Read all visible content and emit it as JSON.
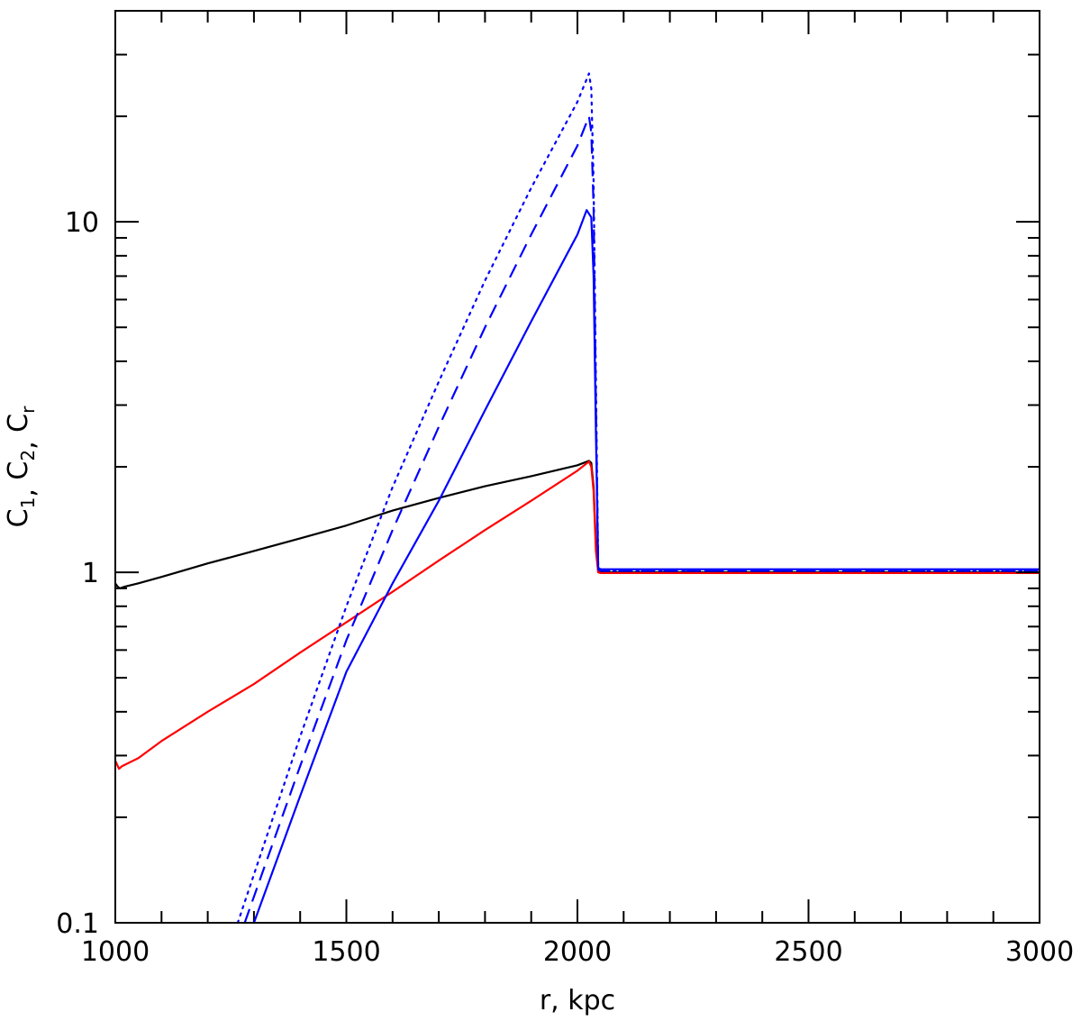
{
  "chart_data": {
    "type": "line",
    "xlabel": "r, kpc",
    "ylabel": {
      "prefix": "C",
      "parts": [
        {
          "sub": "1",
          "sep": ", "
        },
        {
          "sub": "2",
          "sep": ", "
        },
        {
          "sub": "r",
          "sep": ""
        }
      ]
    },
    "xlim": [
      1000,
      3000
    ],
    "ylim": [
      0.1,
      40
    ],
    "yscale": "log",
    "x_ticks": [
      1000,
      1500,
      2000,
      2500,
      3000
    ],
    "x_tick_labels": [
      "1000",
      "1500",
      "2000",
      "2500",
      "3000"
    ],
    "x_minor_step": 100,
    "y_ticks": [
      0.1,
      1,
      10
    ],
    "y_tick_labels": [
      "0.1",
      "1",
      "10"
    ],
    "grid": false,
    "legend": "none",
    "colors": {
      "black": "#000000",
      "red": "#ff0000",
      "blue": "#0000ff"
    },
    "series": [
      {
        "color": "#000000",
        "style": "solid",
        "points": [
          [
            1000,
            0.93
          ],
          [
            1005,
            0.91
          ],
          [
            1010,
            0.9
          ],
          [
            1020,
            0.91
          ],
          [
            1050,
            0.93
          ],
          [
            1100,
            0.97
          ],
          [
            1200,
            1.06
          ],
          [
            1300,
            1.15
          ],
          [
            1400,
            1.25
          ],
          [
            1500,
            1.36
          ],
          [
            1600,
            1.5
          ],
          [
            1700,
            1.63
          ],
          [
            1800,
            1.76
          ],
          [
            1900,
            1.88
          ],
          [
            2000,
            2.02
          ],
          [
            2025,
            2.08
          ],
          [
            2030,
            2.05
          ],
          [
            2035,
            1.75
          ],
          [
            2040,
            1.2
          ],
          [
            2045,
            1.0
          ],
          [
            2050,
            1.0
          ],
          [
            2500,
            1.0
          ],
          [
            3000,
            1.0
          ]
        ]
      },
      {
        "color": "#ff0000",
        "style": "solid",
        "points": [
          [
            1000,
            0.29
          ],
          [
            1008,
            0.275
          ],
          [
            1015,
            0.28
          ],
          [
            1050,
            0.295
          ],
          [
            1100,
            0.33
          ],
          [
            1200,
            0.4
          ],
          [
            1300,
            0.48
          ],
          [
            1400,
            0.59
          ],
          [
            1500,
            0.72
          ],
          [
            1600,
            0.88
          ],
          [
            1700,
            1.08
          ],
          [
            1800,
            1.32
          ],
          [
            1900,
            1.6
          ],
          [
            2000,
            1.95
          ],
          [
            2025,
            2.07
          ],
          [
            2030,
            2.0
          ],
          [
            2035,
            1.7
          ],
          [
            2040,
            1.15
          ],
          [
            2045,
            1.0
          ],
          [
            2050,
            0.995
          ],
          [
            2500,
            0.995
          ],
          [
            3000,
            0.995
          ]
        ]
      },
      {
        "color": "#0000ff",
        "style": "solid",
        "points": [
          [
            1300,
            0.1
          ],
          [
            1400,
            0.23
          ],
          [
            1500,
            0.52
          ],
          [
            1600,
            0.93
          ],
          [
            1700,
            1.6
          ],
          [
            1800,
            2.9
          ],
          [
            1900,
            5.2
          ],
          [
            2000,
            9.2
          ],
          [
            2020,
            10.8
          ],
          [
            2030,
            10.3
          ],
          [
            2035,
            7.0
          ],
          [
            2040,
            2.5
          ],
          [
            2045,
            1.03
          ],
          [
            2050,
            1.02
          ],
          [
            2500,
            1.02
          ],
          [
            3000,
            1.02
          ]
        ]
      },
      {
        "color": "#0000ff",
        "style": "dashed",
        "points": [
          [
            1280,
            0.1
          ],
          [
            1400,
            0.28
          ],
          [
            1500,
            0.64
          ],
          [
            1600,
            1.32
          ],
          [
            1700,
            2.6
          ],
          [
            1800,
            5.0
          ],
          [
            1900,
            9.2
          ],
          [
            2000,
            16.5
          ],
          [
            2025,
            20.0
          ],
          [
            2030,
            18.0
          ],
          [
            2035,
            11.0
          ],
          [
            2040,
            3.0
          ],
          [
            2045,
            1.02
          ],
          [
            2050,
            1.01
          ],
          [
            2500,
            1.01
          ],
          [
            3000,
            1.01
          ]
        ]
      },
      {
        "color": "#0000ff",
        "style": "dotted",
        "points": [
          [
            1265,
            0.1
          ],
          [
            1400,
            0.34
          ],
          [
            1500,
            0.8
          ],
          [
            1600,
            1.75
          ],
          [
            1700,
            3.5
          ],
          [
            1800,
            6.8
          ],
          [
            1900,
            12.5
          ],
          [
            2000,
            22.0
          ],
          [
            2025,
            26.5
          ],
          [
            2030,
            24.0
          ],
          [
            2035,
            13.0
          ],
          [
            2040,
            3.5
          ],
          [
            2045,
            1.02
          ],
          [
            2050,
            1.01
          ],
          [
            2500,
            1.01
          ],
          [
            3000,
            1.01
          ]
        ]
      }
    ]
  }
}
